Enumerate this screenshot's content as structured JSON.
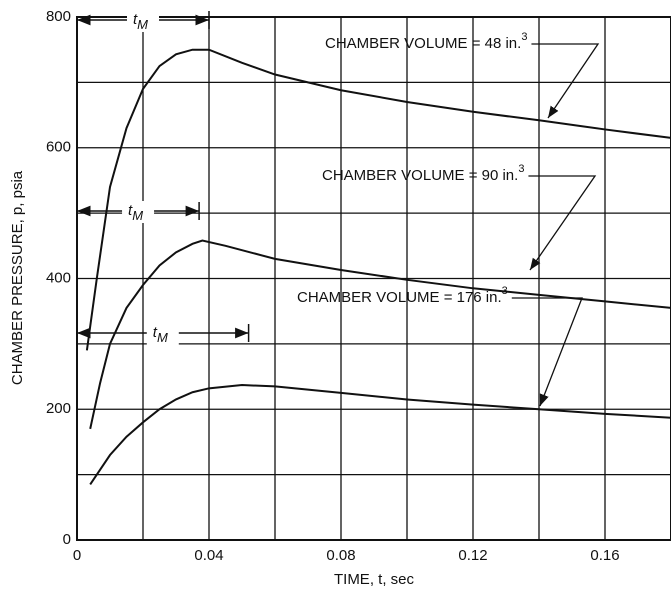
{
  "chart_data": {
    "type": "line",
    "x_label": "TIME, t, sec",
    "y_label": "CHAMBER PRESSURE, p, psia",
    "xlim": [
      0,
      0.18
    ],
    "ylim": [
      0,
      800
    ],
    "xticks": [
      0,
      0.04,
      0.08,
      0.12,
      0.16
    ],
    "yticks": [
      0,
      200,
      400,
      600,
      800
    ],
    "x_minor_grid": [
      0.02,
      0.06,
      0.1,
      0.14
    ],
    "y_minor_grid": [
      100,
      300,
      500,
      700
    ],
    "grid": true,
    "color": "#111111",
    "t_m_symbol": {
      "text": "t",
      "subscript": "M"
    },
    "series": [
      {
        "name": "CHAMBER VOLUME = 48 in.",
        "superscript": "3",
        "t_m": 0.04,
        "x": [
          0.003,
          0.006,
          0.01,
          0.015,
          0.02,
          0.025,
          0.03,
          0.035,
          0.04,
          0.05,
          0.06,
          0.08,
          0.1,
          0.12,
          0.14,
          0.16,
          0.18
        ],
        "values": [
          290,
          400,
          540,
          630,
          690,
          725,
          743,
          750,
          750,
          730,
          712,
          688,
          670,
          655,
          642,
          628,
          615
        ]
      },
      {
        "name": "CHAMBER VOLUME = 90 in.",
        "superscript": "3",
        "t_m": 0.037,
        "x": [
          0.004,
          0.007,
          0.01,
          0.015,
          0.02,
          0.025,
          0.03,
          0.035,
          0.038,
          0.045,
          0.06,
          0.08,
          0.1,
          0.12,
          0.14,
          0.16,
          0.18
        ],
        "values": [
          170,
          240,
          300,
          355,
          390,
          420,
          440,
          453,
          458,
          450,
          430,
          413,
          398,
          385,
          375,
          365,
          355
        ]
      },
      {
        "name": "CHAMBER VOLUME = 176 in.",
        "superscript": "3",
        "t_m": 0.052,
        "x": [
          0.004,
          0.01,
          0.015,
          0.02,
          0.025,
          0.03,
          0.035,
          0.04,
          0.05,
          0.06,
          0.08,
          0.1,
          0.12,
          0.14,
          0.16,
          0.18
        ],
        "values": [
          85,
          130,
          158,
          180,
          200,
          215,
          226,
          232,
          237,
          235,
          225,
          215,
          207,
          200,
          193,
          187
        ]
      }
    ]
  }
}
